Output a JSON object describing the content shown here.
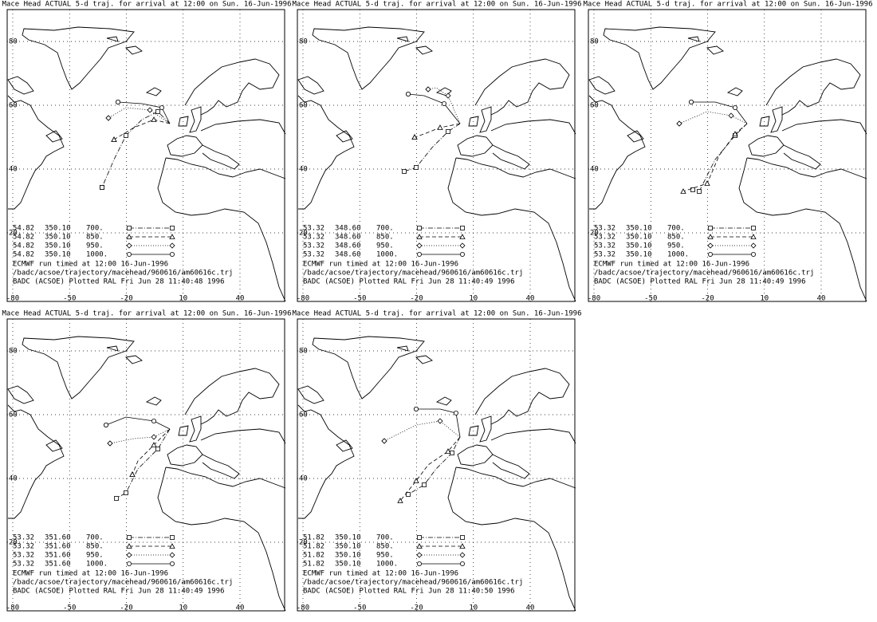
{
  "panels": [
    {
      "title": "Mace Head ACTUAL 5-d traj. for arrival at 12:00 on Sun. 16-Jun-1996",
      "yticks": [
        80,
        60,
        40,
        20
      ],
      "xticks": [
        -80,
        -50,
        -20,
        10,
        40
      ],
      "legend": [
        {
          "lat": "54.82",
          "lon": "350.10",
          "level": "700."
        },
        {
          "lat": "54.82",
          "lon": "350.10",
          "level": "850."
        },
        {
          "lat": "54.82",
          "lon": "350.10",
          "level": "950."
        },
        {
          "lat": "54.82",
          "lon": "350.10",
          "level": "1000."
        }
      ],
      "footer": [
        "ECMWF run timed at 12:00 16-Jun-1996",
        "/badc/acsoe/trajectory/macehead/960616/am60616c.trj",
        "BADC (ACSOE) Plotted RAL Fri Jun 28 11:40:48 1996"
      ]
    },
    {
      "title": "Mace Head ACTUAL 5-d traj. for arrival at 12:00 on Sun. 16-Jun-1996",
      "yticks": [
        80,
        60,
        40,
        20
      ],
      "xticks": [
        -80,
        -50,
        -20,
        10,
        40
      ],
      "legend": [
        {
          "lat": "53.32",
          "lon": "348.60",
          "level": "700."
        },
        {
          "lat": "53.32",
          "lon": "348.60",
          "level": "850."
        },
        {
          "lat": "53.32",
          "lon": "348.60",
          "level": "950."
        },
        {
          "lat": "53.32",
          "lon": "348.60",
          "level": "1000."
        }
      ],
      "footer": [
        "ECMWF run timed at 12:00 16-Jun-1996",
        "/badc/acsoe/trajectory/macehead/960616/am60616c.trj",
        "BADC (ACSOE) Plotted RAL Fri Jun 28 11:40:49 1996"
      ]
    },
    {
      "title": "Mace Head ACTUAL 5-d traj. for arrival at 12:00 on Sun. 16-Jun-1996",
      "yticks": [
        80,
        60,
        40,
        20
      ],
      "xticks": [
        -80,
        -50,
        -20,
        10,
        40
      ],
      "legend": [
        {
          "lat": "53.32",
          "lon": "350.10",
          "level": "700."
        },
        {
          "lat": "53.32",
          "lon": "350.10",
          "level": "850."
        },
        {
          "lat": "53.32",
          "lon": "350.10",
          "level": "950."
        },
        {
          "lat": "53.32",
          "lon": "350.10",
          "level": "1000."
        }
      ],
      "footer": [
        "ECMWF run timed at 12:00 16-Jun-1996",
        "/badc/acsoe/trajectory/macehead/960616/am60616c.trj",
        "BADC (ACSOE) Plotted RAL Fri Jun 28 11:40:49 1996"
      ]
    },
    {
      "title": "Mace Head ACTUAL 5-d traj. for arrival at 12:00 on Sun. 16-Jun-1996",
      "yticks": [
        80,
        60,
        40,
        20
      ],
      "xticks": [
        -80,
        -50,
        -20,
        10,
        40
      ],
      "legend": [
        {
          "lat": "53.32",
          "lon": "351.60",
          "level": "700."
        },
        {
          "lat": "53.32",
          "lon": "351.60",
          "level": "850."
        },
        {
          "lat": "53.32",
          "lon": "351.60",
          "level": "950."
        },
        {
          "lat": "53.32",
          "lon": "351.60",
          "level": "1000."
        }
      ],
      "footer": [
        "ECMWF run timed at 12:00 16-Jun-1996",
        "/badc/acsoe/trajectory/macehead/960616/am60616c.trj",
        "BADC (ACSOE) Plotted RAL Fri Jun 28 11:40:49 1996"
      ]
    },
    {
      "title": "Mace Head ACTUAL 5-d traj. for arrival at 12:00 on Sun. 16-Jun-1996",
      "yticks": [
        80,
        60,
        40,
        20
      ],
      "xticks": [
        -80,
        -50,
        -20,
        10,
        40
      ],
      "legend": [
        {
          "lat": "51.82",
          "lon": "350.10",
          "level": "700."
        },
        {
          "lat": "51.82",
          "lon": "350.10",
          "level": "850."
        },
        {
          "lat": "51.82",
          "lon": "350.10",
          "level": "950."
        },
        {
          "lat": "51.82",
          "lon": "350.10",
          "level": "1000."
        }
      ],
      "footer": [
        "ECMWF run timed at 12:00 16-Jun-1996",
        "/badc/acsoe/trajectory/macehead/960616/am60616c.trj",
        "BADC (ACSOE) Plotted RAL Fri Jun 28 11:40:50 1996"
      ]
    }
  ]
}
